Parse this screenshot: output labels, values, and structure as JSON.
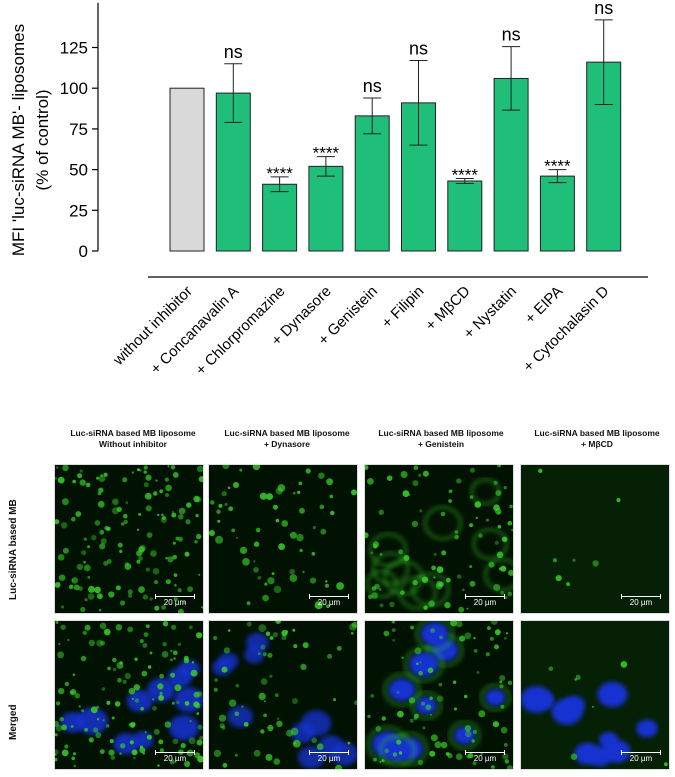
{
  "chart_data": {
    "type": "bar",
    "ylabel_line1": "MFI 'luc-siRNA MB'- liposomes",
    "ylabel_line2": "(% of control)",
    "ylim": [
      0,
      150
    ],
    "yticks": [
      0,
      25,
      50,
      75,
      100,
      125
    ],
    "categories": [
      "without inhibitor",
      "+ Concanavalin A",
      "+ Chlorpromazine",
      "+ Dynasore",
      "+ Genistein",
      "+ Filipin",
      "+ MβCD",
      "+ Nystatin",
      "+ EIPA",
      "+ Cytochalasin D"
    ],
    "values": [
      100,
      97,
      41,
      52,
      83,
      91,
      43,
      106,
      46,
      116
    ],
    "error": [
      0,
      18,
      4.5,
      6,
      11,
      26,
      1.5,
      19.5,
      4,
      26
    ],
    "significance": [
      "",
      "ns",
      "****",
      "****",
      "ns",
      "ns",
      "****",
      "ns",
      "****",
      "ns"
    ],
    "colors": {
      "control": "#d9d9d9",
      "treated": "#1fbf7a",
      "edge": "#222222"
    }
  },
  "micrographs": {
    "columns": [
      {
        "line1": "Luc-siRNA based MB liposome",
        "line2": "Without inhibitor"
      },
      {
        "line1": "Luc-siRNA based MB liposome",
        "line2": "+ Dynasore"
      },
      {
        "line1": "Luc-siRNA based MB liposome",
        "line2": "+ Genistein"
      },
      {
        "line1": "Luc-siRNA based MB liposome",
        "line2": "+ MβCD"
      }
    ],
    "rows": [
      "Luc-siRNA based MB",
      "Merged"
    ],
    "scale_bar": "20 µm",
    "colors": {
      "green": "#3ad12a",
      "blue": "#1530d0",
      "background": "#021202"
    }
  }
}
